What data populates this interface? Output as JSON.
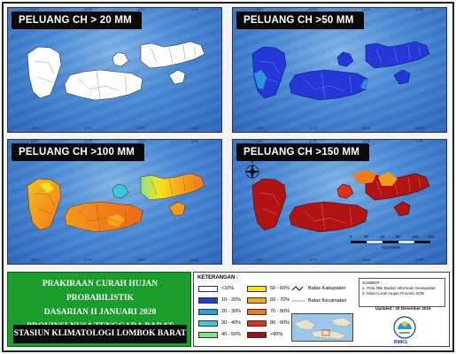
{
  "panels": [
    {
      "label": "PELUANG CH > 20 MM",
      "style": "white"
    },
    {
      "label": "PELUANG CH >50 MM",
      "style": "blue"
    },
    {
      "label": "PELUANG CH >100 MM",
      "style": "orange"
    },
    {
      "label": "PELUANG CH >150 MM",
      "style": "red"
    }
  ],
  "scale_bar": {
    "ticks": [
      "0",
      "20",
      "40",
      "80",
      "120",
      "160"
    ],
    "unit": "Kilometers"
  },
  "title": {
    "line1": "PRAKIRAAN CURAH HUJAN PROBABILISTIK",
    "line2": "DASARIAN II JANUARI 2020",
    "line3": "PROVINSI NUSA TENGGARA BARAT"
  },
  "station": "STASIUN KLIMATOLOGI LOMBOK BARAT",
  "legend": {
    "title": "KETERANGAN :",
    "classes": [
      {
        "label": "<10%",
        "color": "#ffffff"
      },
      {
        "label": "10 - 20%",
        "color": "#1f3fd6"
      },
      {
        "label": "20 - 30%",
        "color": "#2aa0e0"
      },
      {
        "label": "30 - 40%",
        "color": "#36cbe0"
      },
      {
        "label": "40 - 50%",
        "color": "#86e08a"
      },
      {
        "label": "50 - 60%",
        "color": "#f6e51e"
      },
      {
        "label": "60 - 70%",
        "color": "#f7a81c"
      },
      {
        "label": "70 - 80%",
        "color": "#f27a1a"
      },
      {
        "label": "80 - 90%",
        "color": "#e0301a"
      },
      {
        "label": ">90%",
        "color": "#a01010"
      }
    ],
    "boundary_kabupaten": "Batas Kabupaten",
    "boundary_kecamatan": "Batas Kecamatan",
    "source_title": "SUMBER :",
    "source_1": "1. Peta RBI Badan Informasi Geospasial",
    "source_2": "2. Data Curah Hujan Provinsi NTB",
    "updated": "Updated : 20 Desember 2019",
    "logo_text": "BMKG"
  }
}
